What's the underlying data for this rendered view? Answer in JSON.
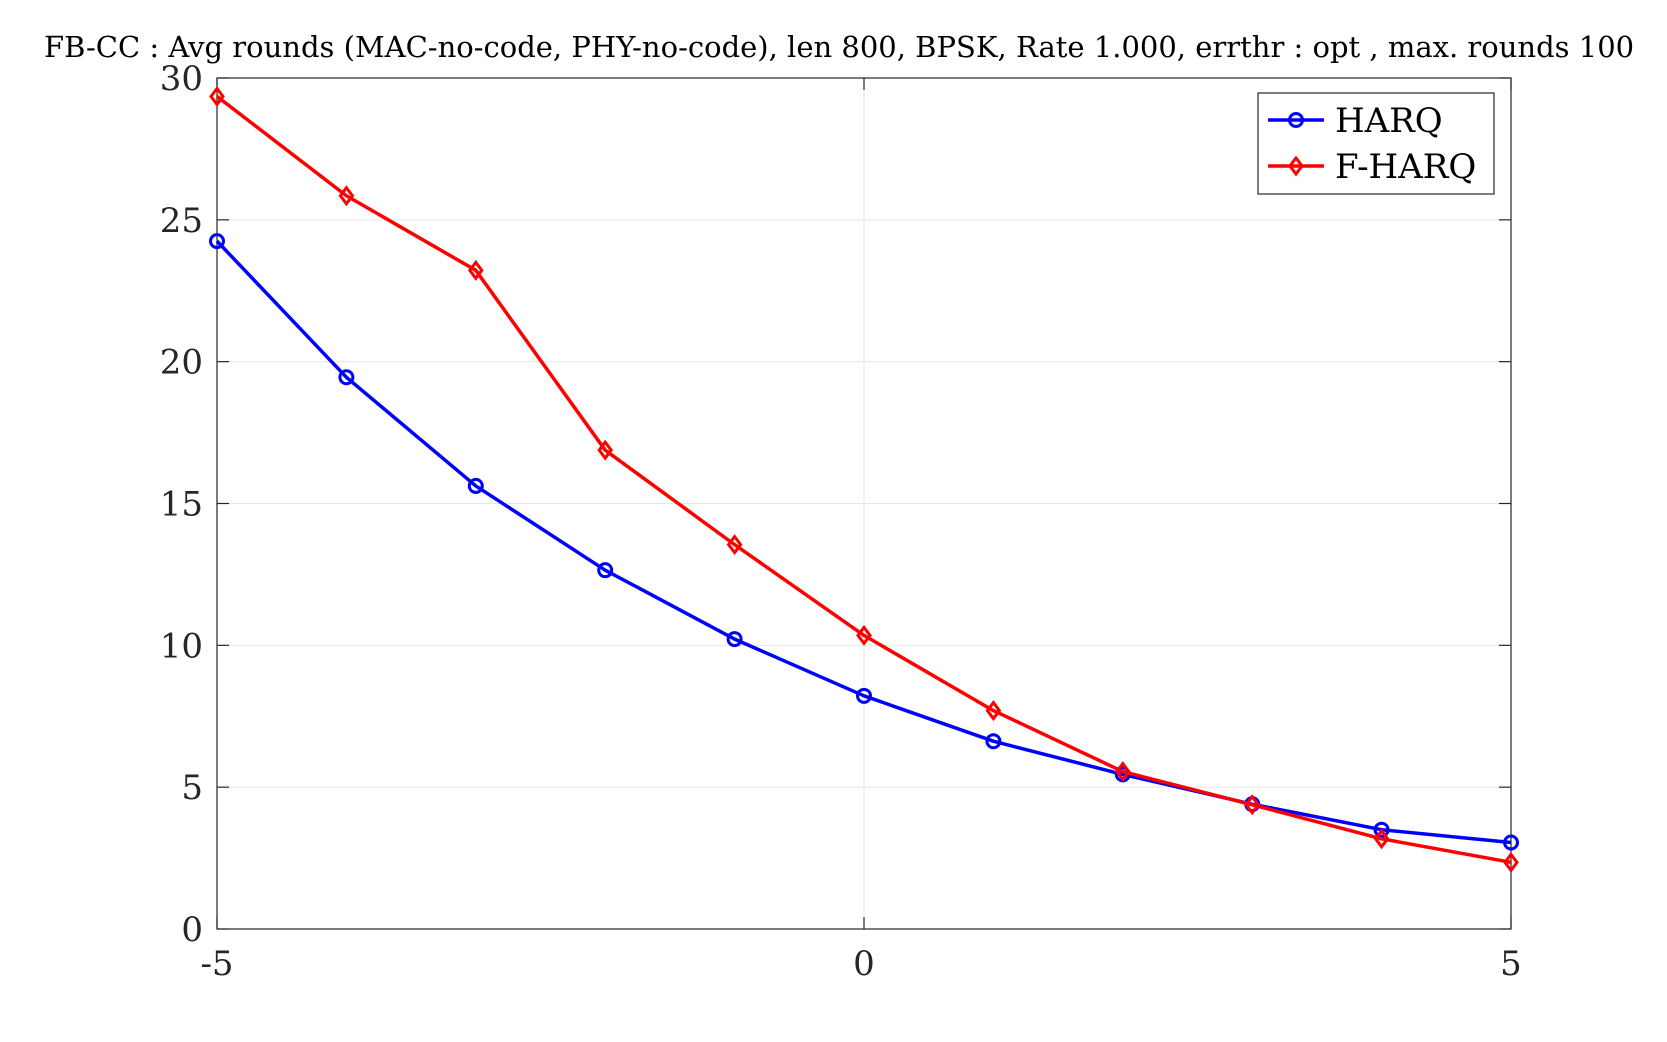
{
  "chart_data": {
    "type": "line",
    "title": "FB-CC : Avg rounds (MAC-no-code, PHY-no-code), len 800, BPSK, Rate 1.000, errthr : opt , max. rounds 100",
    "xlabel": "",
    "ylabel": "",
    "xlim": [
      -5,
      5
    ],
    "ylim": [
      0,
      30
    ],
    "xticks": [
      -5,
      0,
      5
    ],
    "yticks": [
      0,
      5,
      10,
      15,
      20,
      25,
      30
    ],
    "x_tick_labels": [
      "-5",
      "0",
      "5"
    ],
    "y_tick_labels": [
      "0",
      "5",
      "10",
      "15",
      "20",
      "25",
      "30"
    ],
    "grid": true,
    "legend_position": "top-right",
    "x": [
      -5,
      -4,
      -3,
      -2,
      -1,
      0,
      1,
      2,
      3,
      4,
      5
    ],
    "series": [
      {
        "name": "HARQ",
        "marker": "circle",
        "color": "#0000ff",
        "values": [
          24.25,
          19.45,
          15.62,
          12.65,
          10.22,
          8.22,
          6.62,
          5.45,
          4.4,
          3.5,
          3.05
        ]
      },
      {
        "name": "F-HARQ",
        "marker": "diamond",
        "color": "#ff0000",
        "values": [
          29.35,
          25.85,
          23.22,
          16.88,
          13.55,
          10.35,
          7.7,
          5.55,
          4.38,
          3.18,
          2.35
        ]
      }
    ]
  }
}
